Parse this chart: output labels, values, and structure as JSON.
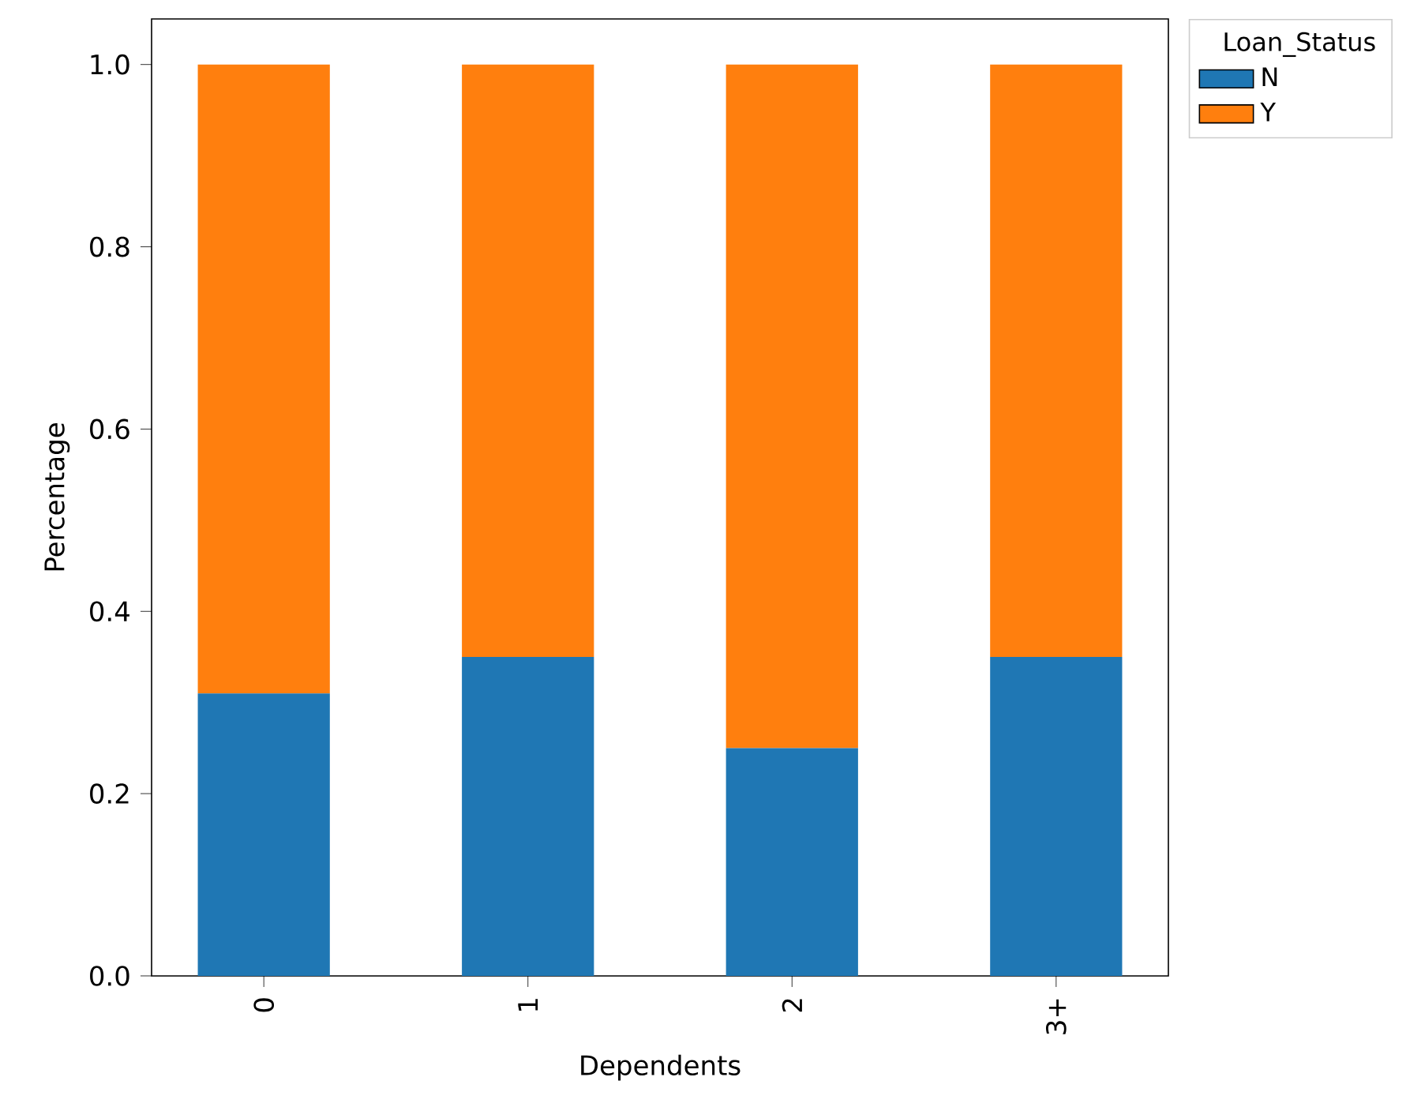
{
  "chart_data": {
    "type": "bar",
    "stacked": true,
    "xlabel": "Dependents",
    "ylabel": "Percentage",
    "legend_title": "Loan_Status",
    "legend": "top right",
    "categories": [
      "0",
      "1",
      "2",
      "3+"
    ],
    "series": [
      {
        "name": "N",
        "color": "#1f77b4",
        "values": [
          0.31,
          0.35,
          0.25,
          0.35
        ]
      },
      {
        "name": "Y",
        "color": "#ff7f0e",
        "values": [
          0.69,
          0.65,
          0.75,
          0.65
        ]
      }
    ],
    "ylim": [
      0,
      1.05
    ],
    "yticks": [
      {
        "value": 0.0,
        "label": "0.0"
      },
      {
        "value": 0.2,
        "label": "0.2"
      },
      {
        "value": 0.4,
        "label": "0.4"
      },
      {
        "value": 0.6,
        "label": "0.6"
      },
      {
        "value": 0.8,
        "label": "0.8"
      },
      {
        "value": 1.0,
        "label": "1.0"
      }
    ],
    "grid": false
  }
}
